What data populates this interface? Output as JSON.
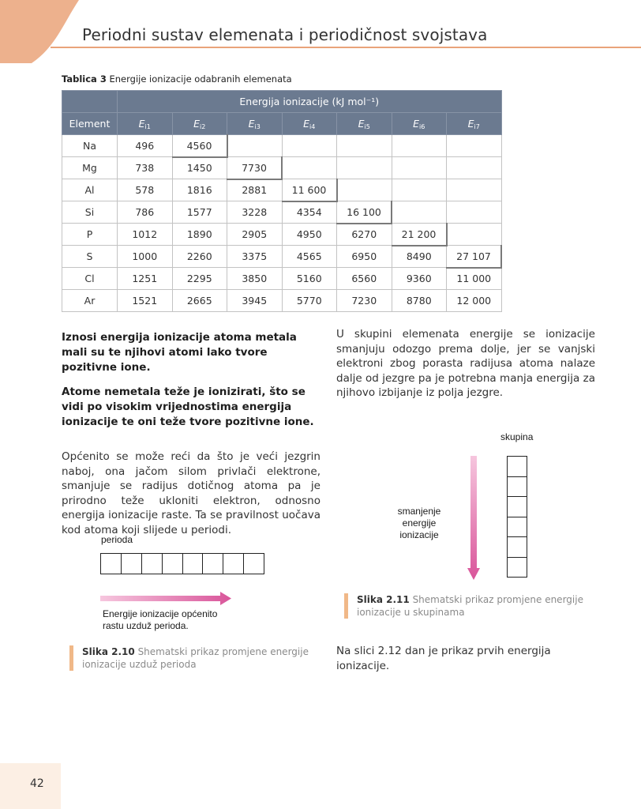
{
  "header": {
    "title": "Periodni sustav elemenata i periodičnost svojstava"
  },
  "table": {
    "caption_label": "Tablica 3",
    "caption_text": "Energije ionizacije odabranih elemenata",
    "group_header": "Energija ionizacije (kJ mol⁻¹)",
    "element_header": "Element",
    "energy_headers": [
      {
        "sym": "E",
        "sub": "i1"
      },
      {
        "sym": "E",
        "sub": "i2"
      },
      {
        "sym": "E",
        "sub": "i3"
      },
      {
        "sym": "E",
        "sub": "i4"
      },
      {
        "sym": "E",
        "sub": "i5"
      },
      {
        "sym": "E",
        "sub": "i6"
      },
      {
        "sym": "E",
        "sub": "i7"
      }
    ],
    "rows": [
      {
        "element": "Na",
        "values": [
          "496",
          "4560",
          "",
          "",
          "",
          "",
          ""
        ]
      },
      {
        "element": "Mg",
        "values": [
          "738",
          "1450",
          "7730",
          "",
          "",
          "",
          ""
        ]
      },
      {
        "element": "Al",
        "values": [
          "578",
          "1816",
          "2881",
          "11 600",
          "",
          "",
          ""
        ]
      },
      {
        "element": "Si",
        "values": [
          "786",
          "1577",
          "3228",
          "4354",
          "16 100",
          "",
          ""
        ]
      },
      {
        "element": "P",
        "values": [
          "1012",
          "1890",
          "2905",
          "4950",
          "6270",
          "21 200",
          ""
        ]
      },
      {
        "element": "S",
        "values": [
          "1000",
          "2260",
          "3375",
          "4565",
          "6950",
          "8490",
          "27 107"
        ]
      },
      {
        "element": "Cl",
        "values": [
          "1251",
          "2295",
          "3850",
          "5160",
          "6560",
          "9360",
          "11 000"
        ]
      },
      {
        "element": "Ar",
        "values": [
          "1521",
          "2665",
          "3945",
          "5770",
          "7230",
          "8780",
          "12 000"
        ]
      }
    ]
  },
  "left_text": {
    "p1": "Iznosi energija ionizacije atoma metala mali su te njihovi atomi lako tvore pozitivne ione.",
    "p2": "Atome nemetala teže je ionizirati, što se vidi po visokim vrijednostima energija ionizacije te oni teže tvore pozitivne ione.",
    "p3": "Općenito se može reći da što je veći jezgrin naboj, ona jačom silom privlači elektrone, smanjuje se radijus dotičnog atoma pa je prirodno teže ukloniti elektron, odnosno energija ionizacije raste. Ta se pravilnost uočava kod atoma koji slijede u periodi."
  },
  "right_text": {
    "p1": "U skupini elemenata energije se ionizacije smanjuju odozgo prema dolje, jer se vanjski elektroni zbog porasta radijusa atoma nalaze dalje od jezgre pa je potrebna manja energija za njihovo izbijanje iz polja jezgre.",
    "p2": "Na slici 2.12 dan je prikaz prvih energija ionizacije."
  },
  "figure_period": {
    "label": "perioda",
    "arrow_text_1": "Energije ionizacije općenito",
    "arrow_text_2": "rastu uzduž perioda.",
    "caption_label": "Slika 2.10",
    "caption_text_1": "Shematski prikaz promjene energije",
    "caption_text_2": "ionizacije uzduž perioda"
  },
  "figure_group": {
    "label": "skupina",
    "arrow_text_1": "smanjenje",
    "arrow_text_2": "energije",
    "arrow_text_3": "ionizacije",
    "caption_label": "Slika 2.11",
    "caption_text_1": "Shematski prikaz promjene energije",
    "caption_text_2": "ionizacije u skupinama"
  },
  "footer": {
    "page_number": "42"
  },
  "colors": {
    "accent": "#e9a37a",
    "table_header": "#6b7a90",
    "arrow": "#d9559a"
  }
}
